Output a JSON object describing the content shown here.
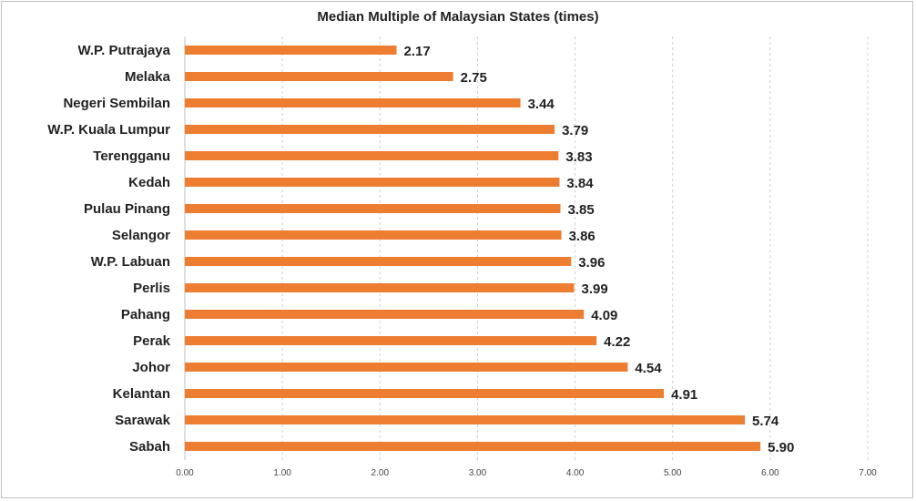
{
  "chart_data": {
    "type": "bar",
    "orientation": "horizontal",
    "title": "Median Multiple of Malaysian States (times)",
    "categories": [
      "W.P. Putrajaya",
      "Melaka",
      "Negeri Sembilan",
      "W.P. Kuala Lumpur",
      "Terengganu",
      "Kedah",
      "Pulau Pinang",
      "Selangor",
      "W.P. Labuan",
      "Perlis",
      "Pahang",
      "Perak",
      "Johor",
      "Kelantan",
      "Sarawak",
      "Sabah"
    ],
    "values": [
      2.17,
      2.75,
      3.44,
      3.79,
      3.83,
      3.84,
      3.85,
      3.86,
      3.96,
      3.99,
      4.09,
      4.22,
      4.54,
      4.91,
      5.74,
      5.9
    ],
    "value_labels": [
      "2.17",
      "2.75",
      "3.44",
      "3.79",
      "3.83",
      "3.84",
      "3.85",
      "3.86",
      "3.96",
      "3.99",
      "4.09",
      "4.22",
      "4.54",
      "4.91",
      "5.74",
      "5.90"
    ],
    "xlim": [
      0,
      7
    ],
    "x_ticks": [
      0,
      1,
      2,
      3,
      4,
      5,
      6,
      7
    ],
    "x_tick_labels": [
      "0.00",
      "1.00",
      "2.00",
      "3.00",
      "4.00",
      "5.00",
      "6.00",
      "7.00"
    ],
    "xlabel": "",
    "ylabel": "",
    "grid": "vertical dashed",
    "legend": "none",
    "colors": {
      "bar": "#ED7D31",
      "grid": "#d0d0d0",
      "text": "#222222"
    }
  }
}
